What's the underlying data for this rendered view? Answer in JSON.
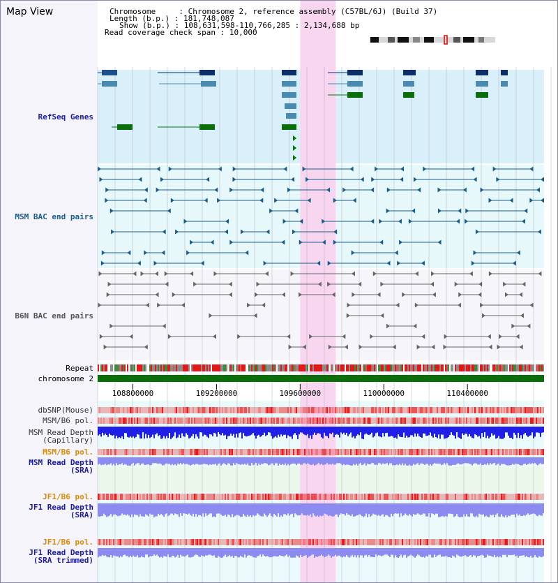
{
  "header": {
    "title": "Map View",
    "chromosome_label": "Chromosome",
    "chromosome_value": "Chromosome 2, reference assembly (C57BL/6J) (Build 37)",
    "length_label": "Length (b.p.)",
    "length_value": "181,748,087",
    "show_label": "Show (b.p.)",
    "show_value": "108,631,598-110,766,285 : 2,134,688 bp",
    "span_label": "Read coverage check span",
    "span_value": "10,000"
  },
  "view": {
    "start": 108631598,
    "end": 110766285,
    "highlight": [
      109600000,
      109770000
    ]
  },
  "tracks": {
    "refseq": "RefSeq Genes",
    "msm_bac": "MSM BAC end pairs",
    "b6n_bac": "B6N BAC end pairs",
    "repeat": "Repeat",
    "chromosome": "chromosome 2",
    "dbsnp": "dbSNP(Mouse)",
    "msm_b6_pol_1": "MSM/B6 pol.",
    "msm_depth_cap_1": "MSM Read Depth",
    "msm_depth_cap_2": "(Capillary)",
    "msm_b6_pol_2": "MSM/B6 pol.",
    "msm_depth_sra_1": "MSM Read Depth",
    "msm_depth_sra_2": "(SRA)",
    "jf1_b6_pol_1": "JF1/B6 pol.",
    "jf1_depth_sra_1": "JF1 Read Depth",
    "jf1_depth_sra_2": "(SRA)",
    "jf1_b6_pol_2": "JF1/B6 pol.",
    "jf1_depth_trim_1": "JF1 Read Depth",
    "jf1_depth_trim_2": "(SRA trimmed)"
  },
  "ruler": {
    "ticks": [
      "108800000",
      "109200000",
      "109600000",
      "110000000",
      "110400000"
    ]
  },
  "colors": {
    "refseq_bg": "#d9f0fa",
    "refseq_label": "#1a1aa8",
    "msm_bg": "#e6f8fa",
    "msm_label": "#1a5c8c",
    "b6n_label": "#555555",
    "highlight": "#f8d6f0",
    "chromosome_bar": "#0a6e0a",
    "orange_label": "#e08a00",
    "blue_label": "#1a1aa8",
    "depth_blue": "#1f1fe6",
    "depth_light": "#8c8cf0"
  }
}
